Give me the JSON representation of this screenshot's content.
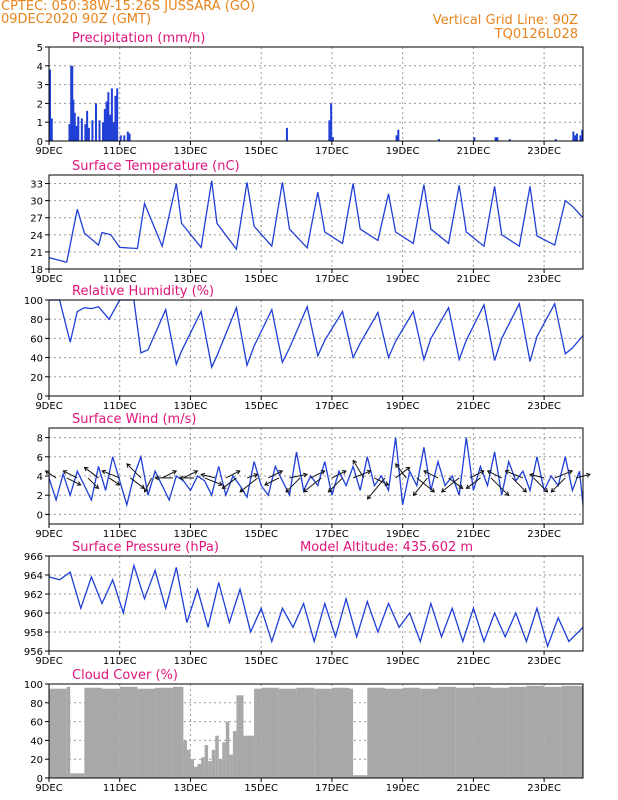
{
  "header": {
    "line1": "CPTEC:   050:38W-15:26S   JUSSARA (GO)",
    "line2": "09DEC2020 90Z (GMT)",
    "grid_note": "Vertical Grid Line: 90Z",
    "model_id": "TQ0126L028"
  },
  "colors": {
    "header": "#e8841c",
    "title": "#e0147a",
    "line": "#1f3fd6",
    "cloud": "#a8a8a8",
    "grid": "#9a9a9a"
  },
  "x_axis": {
    "ticks": [
      9,
      11,
      13,
      15,
      17,
      19,
      21,
      23
    ],
    "tick_labels": [
      "9DEC",
      "11DEC",
      "13DEC",
      "15DEC",
      "17DEC",
      "19DEC",
      "21DEC",
      "23DEC"
    ],
    "range": [
      9,
      24.1
    ]
  },
  "chart_data": [
    {
      "type": "bar",
      "title": "Precipitation  (mm/h)",
      "ylim": [
        0,
        5
      ],
      "yticks": [
        0,
        1,
        2,
        3,
        4,
        5
      ],
      "x": [
        9.0,
        9.05,
        9.55,
        9.6,
        9.63,
        9.66,
        9.7,
        9.75,
        9.8,
        9.9,
        10.0,
        10.05,
        10.1,
        10.2,
        10.3,
        10.4,
        10.5,
        10.55,
        10.6,
        10.65,
        10.7,
        10.75,
        10.8,
        10.85,
        10.9,
        11.0,
        11.1,
        11.2,
        11.25,
        15.7,
        16.9,
        16.95,
        17.0,
        18.8,
        18.85,
        20.0,
        21.0,
        21.6,
        21.65,
        22.0,
        23.3,
        23.8,
        23.85,
        23.9,
        24.0,
        24.05
      ],
      "values": [
        3.8,
        1.2,
        0.9,
        4.0,
        4.0,
        2.2,
        1.5,
        0.8,
        1.3,
        1.2,
        0.9,
        1.6,
        0.7,
        1.1,
        2.0,
        1.1,
        1.0,
        1.7,
        2.1,
        2.6,
        1.4,
        2.8,
        1.0,
        2.4,
        2.8,
        0.3,
        0.3,
        0.5,
        0.4,
        0.7,
        1.1,
        2.0,
        0.2,
        0.3,
        0.6,
        0.1,
        0.2,
        0.2,
        0.2,
        0.1,
        0.1,
        0.5,
        0.3,
        0.4,
        0.3,
        0.6
      ]
    },
    {
      "type": "line",
      "title": "Surface Temperature (nC)",
      "ylim": [
        18,
        34.5
      ],
      "yticks": [
        18,
        21,
        24,
        27,
        30,
        33
      ],
      "x": [
        9.0,
        9.5,
        9.8,
        10.0,
        10.4,
        10.5,
        10.75,
        11.0,
        11.5,
        11.7,
        12.2,
        12.6,
        12.75,
        13.3,
        13.6,
        13.75,
        14.3,
        14.6,
        14.8,
        15.3,
        15.6,
        15.8,
        16.3,
        16.6,
        16.8,
        17.3,
        17.6,
        17.8,
        18.3,
        18.6,
        18.8,
        19.3,
        19.6,
        19.8,
        20.3,
        20.6,
        20.8,
        21.3,
        21.6,
        21.8,
        22.3,
        22.6,
        22.8,
        23.3,
        23.6,
        23.8,
        24.1
      ],
      "values": [
        20.0,
        19.2,
        28.5,
        24.3,
        22.2,
        24.4,
        24.0,
        21.8,
        21.6,
        29.5,
        22.0,
        33.0,
        26.0,
        21.8,
        33.5,
        26.0,
        21.5,
        33.2,
        25.5,
        22.0,
        33.2,
        25.0,
        21.7,
        31.5,
        24.5,
        22.5,
        33.0,
        25.0,
        23.0,
        31.2,
        24.5,
        22.5,
        32.8,
        25.0,
        22.5,
        32.7,
        24.5,
        22.0,
        32.5,
        24.0,
        22.0,
        32.5,
        23.8,
        22.2,
        30.0,
        29.0,
        27.0
      ]
    },
    {
      "type": "line",
      "title": "Relative Humidity (%)",
      "ylim": [
        0,
        100
      ],
      "yticks": [
        0,
        20,
        40,
        60,
        80,
        100
      ],
      "x": [
        9.0,
        9.3,
        9.6,
        9.8,
        10.0,
        10.2,
        10.4,
        10.7,
        11.0,
        11.4,
        11.6,
        11.8,
        12.3,
        12.6,
        12.75,
        13.3,
        13.6,
        13.75,
        14.3,
        14.6,
        14.8,
        15.3,
        15.6,
        15.8,
        16.3,
        16.6,
        16.8,
        17.3,
        17.6,
        17.8,
        18.3,
        18.6,
        18.8,
        19.3,
        19.6,
        19.8,
        20.3,
        20.6,
        20.8,
        21.3,
        21.6,
        21.8,
        22.3,
        22.6,
        22.8,
        23.3,
        23.6,
        23.8,
        24.1
      ],
      "values": [
        100,
        100,
        56,
        88,
        92,
        91,
        93,
        80,
        100,
        100,
        45,
        48,
        90,
        33,
        47,
        88,
        30,
        42,
        92,
        32,
        52,
        90,
        35,
        50,
        93,
        42,
        58,
        88,
        40,
        55,
        87,
        40,
        57,
        88,
        38,
        60,
        92,
        38,
        58,
        95,
        37,
        60,
        96,
        36,
        62,
        96,
        44,
        50,
        63
      ]
    },
    {
      "type": "line",
      "title": "Surface Wind  (m/s)",
      "ylim": [
        -1,
        9
      ],
      "yticks": [
        0,
        2,
        4,
        6,
        8
      ],
      "x": [
        9.0,
        9.2,
        9.4,
        9.6,
        9.8,
        10.0,
        10.2,
        10.4,
        10.6,
        10.8,
        11.0,
        11.2,
        11.4,
        11.6,
        11.8,
        12.0,
        12.2,
        12.4,
        12.6,
        12.8,
        13.0,
        13.2,
        13.4,
        13.6,
        13.8,
        14.0,
        14.2,
        14.4,
        14.6,
        14.8,
        15.0,
        15.2,
        15.4,
        15.6,
        15.8,
        16.0,
        16.2,
        16.4,
        16.6,
        16.8,
        17.0,
        17.2,
        17.4,
        17.6,
        17.8,
        18.0,
        18.2,
        18.4,
        18.6,
        18.8,
        19.0,
        19.2,
        19.4,
        19.6,
        19.8,
        20.0,
        20.2,
        20.4,
        20.6,
        20.8,
        21.0,
        21.2,
        21.4,
        21.6,
        21.8,
        22.0,
        22.2,
        22.4,
        22.6,
        22.8,
        23.0,
        23.2,
        23.4,
        23.6,
        23.8,
        24.0,
        24.1
      ],
      "values": [
        3.8,
        1.5,
        4.2,
        2.0,
        4.5,
        3.0,
        1.5,
        5.0,
        2.5,
        6.0,
        3.5,
        1.0,
        4.0,
        6.0,
        2.0,
        4.5,
        3.0,
        1.5,
        4.0,
        3.5,
        2.5,
        4.0,
        3.5,
        2.0,
        5.0,
        2.0,
        4.0,
        3.0,
        1.8,
        5.5,
        3.0,
        2.0,
        5.0,
        3.5,
        2.0,
        6.5,
        2.5,
        4.0,
        3.0,
        5.5,
        2.0,
        4.5,
        3.0,
        5.0,
        2.5,
        6.0,
        3.0,
        4.0,
        2.5,
        8.0,
        1.0,
        4.5,
        3.0,
        7.0,
        2.5,
        5.5,
        3.0,
        4.0,
        2.0,
        8.0,
        2.5,
        5.0,
        3.0,
        6.5,
        2.0,
        5.5,
        3.5,
        4.5,
        2.5,
        6.0,
        2.5,
        4.0,
        3.0,
        6.0,
        2.5,
        4.5,
        1.0
      ],
      "vectors": {
        "x": [
          9.2,
          9.5,
          9.8,
          10.1,
          10.4,
          10.7,
          11.0,
          11.3,
          11.6,
          11.9,
          12.2,
          12.5,
          12.8,
          13.1,
          13.4,
          13.7,
          14.0,
          14.3,
          14.6,
          14.9,
          15.2,
          15.5,
          15.8,
          16.1,
          16.4,
          16.7,
          17.0,
          17.3,
          17.6,
          17.9,
          18.2,
          18.5,
          18.8,
          19.1,
          19.4,
          19.7,
          20.0,
          20.3,
          20.6,
          20.9,
          21.2,
          21.5,
          21.8,
          22.1,
          22.4,
          22.7,
          23.0,
          23.3,
          23.6,
          23.9
        ],
        "u": [
          -1.5,
          2.0,
          -2.0,
          1.5,
          -2.0,
          1.5,
          -2.5,
          2.0,
          -2.0,
          -1.0,
          2.0,
          -2.5,
          2.0,
          -2.0,
          2.5,
          -2.0,
          2.0,
          -2.0,
          1.5,
          -2.5,
          2.0,
          -2.0,
          2.5,
          -2.0,
          2.0,
          -2.5,
          2.0,
          -2.0,
          2.5,
          -1.5,
          2.0,
          -2.5,
          2.0,
          -1.5,
          2.5,
          -2.0,
          -2.0,
          2.0,
          -2.5,
          2.0,
          -2.0,
          2.5,
          -2.0,
          2.0,
          -2.5,
          2.0,
          -2.0,
          2.5,
          -2.0,
          2.0
        ],
        "v": [
          1.0,
          -1.0,
          1.0,
          -1.5,
          1.5,
          -1.0,
          1.0,
          -1.5,
          2.0,
          -2.0,
          1.0,
          0.0,
          1.0,
          0.0,
          -1.0,
          0.5,
          1.0,
          -1.5,
          0.5,
          -2.0,
          1.0,
          -1.0,
          0.5,
          -2.0,
          1.0,
          -2.0,
          1.0,
          -2.0,
          1.0,
          2.5,
          -1.0,
          -3.0,
          1.5,
          2.0,
          -2.0,
          -2.5,
          1.0,
          -1.5,
          -2.0,
          1.0,
          -1.5,
          -2.5,
          1.0,
          -2.0,
          1.0,
          -2.0,
          0.5,
          1.0,
          -2.0,
          0.5
        ]
      }
    },
    {
      "type": "line",
      "title": "Surface Pressure (hPa)",
      "annotation": "Model Altitude: 435.602  m",
      "ylim": [
        956,
        966
      ],
      "yticks": [
        956,
        958,
        960,
        962,
        964,
        966
      ],
      "x": [
        9.0,
        9.3,
        9.6,
        9.9,
        10.2,
        10.5,
        10.8,
        11.1,
        11.4,
        11.7,
        12.0,
        12.3,
        12.6,
        12.9,
        13.2,
        13.5,
        13.8,
        14.1,
        14.4,
        14.7,
        15.0,
        15.3,
        15.6,
        15.9,
        16.2,
        16.5,
        16.8,
        17.1,
        17.4,
        17.7,
        18.0,
        18.3,
        18.6,
        18.9,
        19.2,
        19.5,
        19.8,
        20.1,
        20.4,
        20.7,
        21.0,
        21.3,
        21.6,
        21.9,
        22.2,
        22.5,
        22.8,
        23.1,
        23.4,
        23.7,
        24.1
      ],
      "values": [
        963.8,
        963.5,
        964.3,
        960.5,
        963.8,
        961.0,
        963.5,
        960.0,
        965.0,
        961.5,
        964.5,
        960.5,
        964.8,
        959.0,
        962.5,
        958.5,
        963.2,
        959.0,
        962.5,
        958.0,
        960.5,
        957.0,
        960.5,
        958.5,
        961.0,
        957.0,
        961.0,
        957.5,
        961.5,
        957.5,
        961.2,
        958.0,
        961.0,
        958.5,
        960.0,
        957.0,
        961.0,
        957.5,
        960.5,
        957.0,
        960.5,
        957.0,
        960.0,
        957.5,
        960.0,
        957.0,
        960.5,
        956.5,
        959.5,
        957.0,
        958.5
      ]
    },
    {
      "type": "bar",
      "title": "Cloud Cover (%)",
      "ylim": [
        0,
        100
      ],
      "yticks": [
        0,
        20,
        40,
        60,
        80,
        100
      ],
      "x": [
        9.0,
        9.5,
        9.6,
        10.0,
        10.5,
        11.0,
        11.5,
        12.0,
        12.5,
        12.8,
        12.9,
        13.0,
        13.1,
        13.2,
        13.3,
        13.4,
        13.5,
        13.6,
        13.7,
        13.8,
        13.9,
        14.0,
        14.1,
        14.2,
        14.3,
        14.5,
        14.8,
        15.0,
        15.5,
        16.0,
        16.5,
        17.0,
        17.5,
        17.6,
        18.0,
        18.5,
        19.0,
        19.5,
        20.0,
        20.5,
        21.0,
        21.5,
        22.0,
        22.5,
        23.0,
        23.5,
        24.0
      ],
      "values": [
        95,
        97,
        5,
        96,
        95,
        97,
        95,
        96,
        97,
        40,
        30,
        20,
        12,
        15,
        22,
        35,
        18,
        30,
        45,
        20,
        38,
        60,
        25,
        50,
        88,
        45,
        95,
        96,
        95,
        96,
        95,
        96,
        95,
        3,
        96,
        95,
        96,
        95,
        97,
        96,
        97,
        96,
        97,
        98,
        97,
        98,
        98
      ]
    }
  ]
}
